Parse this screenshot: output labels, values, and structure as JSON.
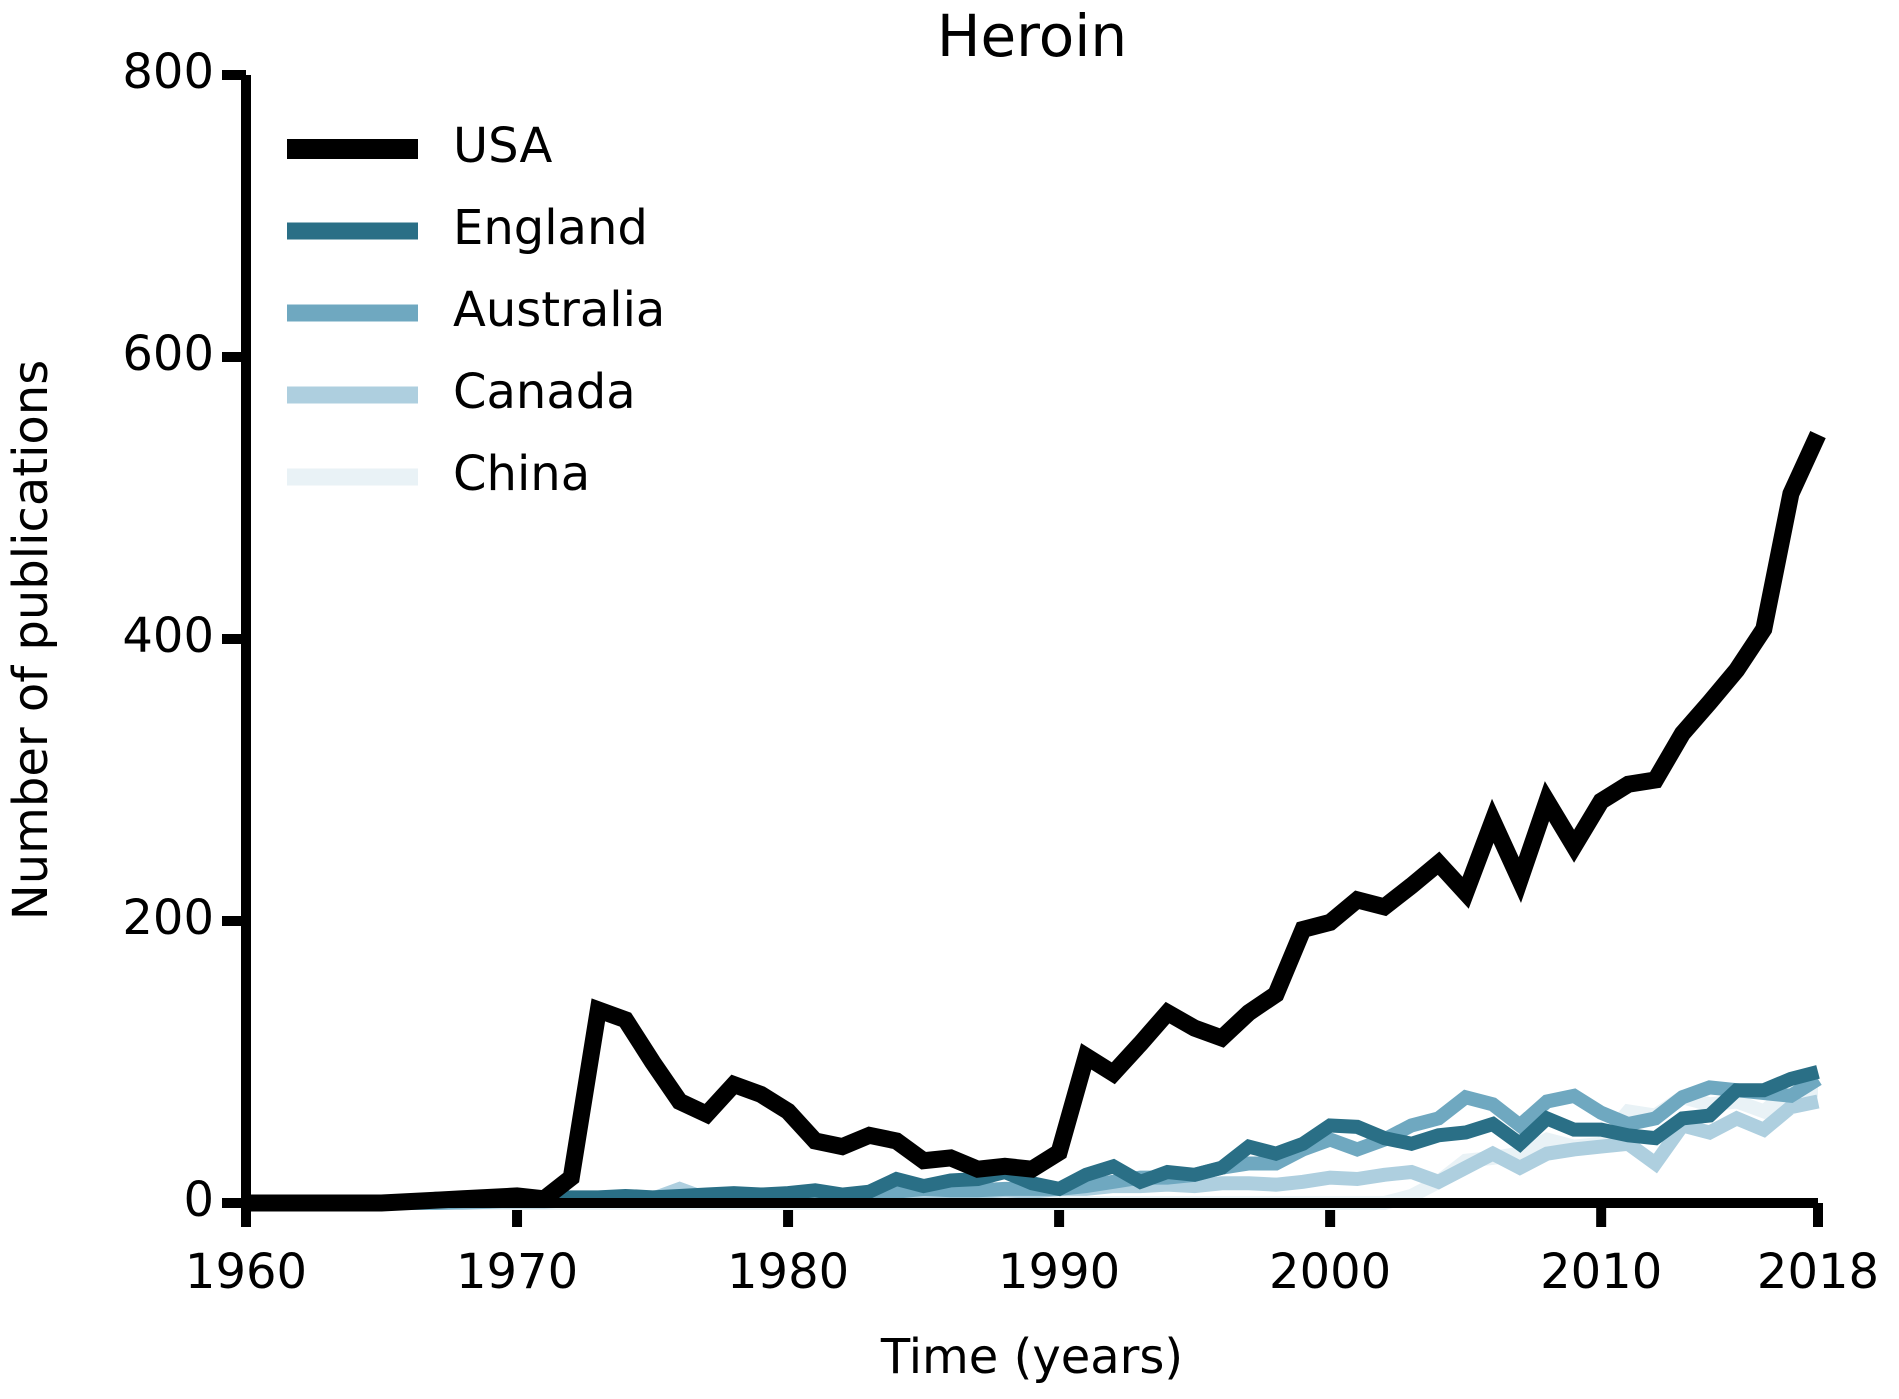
{
  "chart_data": {
    "type": "line",
    "title": "Heroin",
    "xlabel": "Time (years)",
    "ylabel": "Number of publications",
    "x": [
      1960,
      1961,
      1962,
      1963,
      1964,
      1965,
      1966,
      1967,
      1968,
      1969,
      1970,
      1971,
      1972,
      1973,
      1974,
      1975,
      1976,
      1977,
      1978,
      1979,
      1980,
      1981,
      1982,
      1983,
      1984,
      1985,
      1986,
      1987,
      1988,
      1989,
      1990,
      1991,
      1992,
      1993,
      1994,
      1995,
      1996,
      1997,
      1998,
      1999,
      2000,
      2001,
      2002,
      2003,
      2004,
      2005,
      2006,
      2007,
      2008,
      2009,
      2010,
      2011,
      2012,
      2013,
      2014,
      2015,
      2016,
      2017,
      2018
    ],
    "series": [
      {
        "name": "USA",
        "color": "#000000",
        "values": [
          0,
          0,
          0,
          0,
          0,
          0,
          1,
          2,
          3,
          4,
          5,
          3,
          18,
          137,
          130,
          100,
          72,
          63,
          84,
          77,
          65,
          44,
          40,
          48,
          44,
          30,
          32,
          24,
          26,
          24,
          36,
          104,
          92,
          113,
          135,
          124,
          117,
          135,
          148,
          194,
          199,
          215,
          210,
          225,
          241,
          220,
          271,
          229,
          285,
          253,
          285,
          297,
          300,
          333,
          355,
          378,
          407,
          503,
          545
        ]
      },
      {
        "name": "England",
        "color": "#2a6f86",
        "values": [
          0,
          0,
          0,
          0,
          0,
          0,
          1,
          3,
          2,
          3,
          4,
          3,
          4,
          4,
          5,
          4,
          5,
          6,
          7,
          6,
          7,
          9,
          6,
          8,
          17,
          12,
          16,
          17,
          22,
          14,
          10,
          20,
          26,
          15,
          22,
          20,
          25,
          40,
          35,
          42,
          55,
          54,
          46,
          42,
          48,
          50,
          56,
          42,
          60,
          52,
          52,
          48,
          46,
          60,
          62,
          80,
          80,
          88,
          93
        ]
      },
      {
        "name": "Australia",
        "color": "#6fa8c0",
        "values": [
          0,
          0,
          0,
          0,
          0,
          0,
          0,
          0,
          1,
          1,
          2,
          2,
          2,
          3,
          3,
          3,
          4,
          4,
          4,
          5,
          5,
          5,
          6,
          6,
          8,
          10,
          9,
          9,
          10,
          10,
          10,
          12,
          15,
          18,
          18,
          20,
          25,
          28,
          28,
          38,
          45,
          38,
          45,
          55,
          60,
          75,
          70,
          55,
          72,
          76,
          64,
          56,
          60,
          75,
          82,
          80,
          78,
          76,
          88
        ]
      },
      {
        "name": "Canada",
        "color": "#aecfdf",
        "values": [
          0,
          0,
          0,
          0,
          0,
          0,
          0,
          0,
          0,
          1,
          1,
          1,
          2,
          2,
          2,
          3,
          10,
          3,
          4,
          4,
          5,
          5,
          6,
          6,
          8,
          8,
          7,
          8,
          9,
          8,
          10,
          10,
          12,
          12,
          13,
          12,
          14,
          14,
          13,
          15,
          18,
          17,
          20,
          22,
          15,
          25,
          35,
          25,
          35,
          38,
          40,
          42,
          28,
          55,
          50,
          60,
          52,
          68,
          72
        ]
      },
      {
        "name": "China",
        "color": "#e9f2f6",
        "values": [
          0,
          0,
          0,
          0,
          0,
          0,
          0,
          0,
          0,
          0,
          0,
          0,
          0,
          0,
          0,
          0,
          0,
          0,
          0,
          0,
          0,
          0,
          0,
          0,
          0,
          0,
          0,
          0,
          0,
          0,
          0,
          0,
          0,
          0,
          0,
          0,
          0,
          0,
          0,
          0,
          0,
          0,
          0,
          5,
          15,
          30,
          32,
          35,
          45,
          40,
          42,
          65,
          62,
          75,
          70,
          72,
          65,
          80,
          80
        ]
      }
    ],
    "xlim": [
      1960,
      2018
    ],
    "xticks": [
      1960,
      1970,
      1980,
      1990,
      2000,
      2010,
      2018
    ],
    "ylim": [
      0,
      800
    ],
    "yticks": [
      0,
      200,
      400,
      600,
      800
    ],
    "legend": "upper-left"
  }
}
